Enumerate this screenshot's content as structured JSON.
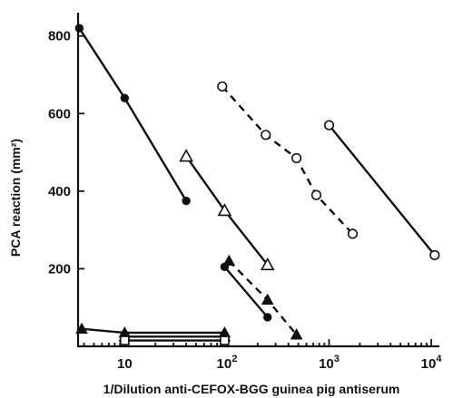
{
  "chart_data": {
    "type": "scatter",
    "title": "",
    "xlabel": "1/Dilution anti-CEFOX-BGG guinea pig antiserum",
    "ylabel": "PCA reaction (mm²)",
    "x_scale": "log",
    "xlim": [
      3.5,
      12000
    ],
    "ylim": [
      0,
      860
    ],
    "x_ticks": [
      {
        "value": 10,
        "base": "10",
        "exp": ""
      },
      {
        "value": 100,
        "base": "10",
        "exp": "2"
      },
      {
        "value": 1000,
        "base": "10",
        "exp": "3"
      },
      {
        "value": 10000,
        "base": "10",
        "exp": "4"
      }
    ],
    "y_ticks": [
      200,
      400,
      600,
      800
    ],
    "grid": false,
    "series": [
      {
        "marker": "filled-circle",
        "line": "solid",
        "color": "#111111",
        "x": [
          3.6,
          10,
          40
        ],
        "y": [
          820,
          640,
          375
        ]
      },
      {
        "marker": "filled-circle",
        "line": "solid",
        "color": "#111111",
        "x": [
          95,
          250
        ],
        "y": [
          205,
          75
        ]
      },
      {
        "marker": "filled-triangle",
        "line": "dashed",
        "color": "#111111",
        "x": [
          105,
          250,
          480
        ],
        "y": [
          220,
          120,
          30
        ]
      },
      {
        "marker": "open-triangle",
        "line": "solid",
        "color": "#111111",
        "x": [
          40,
          95,
          250
        ],
        "y": [
          490,
          350,
          210
        ]
      },
      {
        "marker": "open-circle",
        "line": "dashed",
        "color": "#111111",
        "x": [
          90,
          240,
          480,
          750,
          1700
        ],
        "y": [
          670,
          545,
          485,
          390,
          290
        ]
      },
      {
        "marker": "open-circle",
        "line": "solid",
        "color": "#111111",
        "x": [
          1000,
          10800
        ],
        "y": [
          570,
          235
        ]
      },
      {
        "marker": "filled-triangle",
        "line": "solid",
        "color": "#111111",
        "x": [
          3.8,
          10,
          95
        ],
        "y": [
          45,
          35,
          35
        ]
      },
      {
        "marker": "filled-triangle",
        "line": "solid",
        "color": "#111111",
        "x": [
          10,
          95
        ],
        "y": [
          25,
          25
        ]
      },
      {
        "marker": "open-square",
        "line": "solid",
        "color": "#111111",
        "x": [
          10,
          95
        ],
        "y": [
          15,
          15
        ]
      }
    ]
  }
}
